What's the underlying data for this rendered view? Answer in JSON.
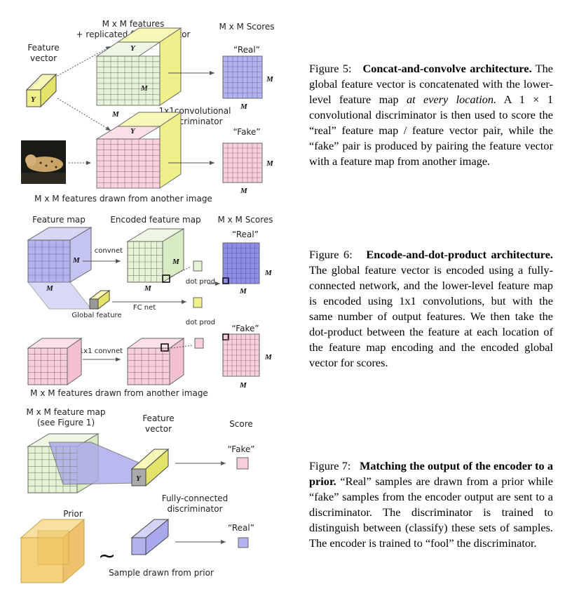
{
  "fig5": {
    "feature_vector": "Feature\nvector",
    "mm_replicated": "M x M features\n+ replicated feature vector",
    "scores": "M x M Scores",
    "real": "“Real”",
    "fake": "“Fake”",
    "conv": "1x1convolutional\ndiscriminator",
    "another": "M x M features drawn from another image",
    "y": "Y",
    "m": "M",
    "caption": {
      "number": "Figure 5:",
      "title": "Concat-and-convolve architecture.",
      "text1": "The global feature vector is concatenated with the lower-level feature map",
      "italic": "at every location.",
      "text2": "A 1 × 1 convolutional discriminator is then used to score the “real” feature map / feature vector pair, while the “fake” pair is produced by pairing the feature vector with a feature map from another image."
    }
  },
  "fig6": {
    "feature_map": "Feature map",
    "encoded": "Encoded feature map",
    "scores": "M x M Scores",
    "real": "“Real”",
    "fake": "“Fake”",
    "convnet": "1x1 convnet",
    "dot_prod": "dot prod",
    "fc_net": "FC net",
    "global_feature": "Global feature",
    "another": "M x M features drawn from another image",
    "caption": {
      "number": "Figure 6:",
      "title": "Encode-and-dot-product architecture.",
      "text": "The global feature vector is encoded using a fully-connected network, and the lower-level feature map is encoded using 1x1 convolutions, but with the same number of output features. We then take the dot-product between the feature at each location of the feature map encoding and the encoded global vector for scores."
    }
  },
  "fig7": {
    "mm_map": "M x M feature map\n(see Figure 1)",
    "feature_vector": "Feature\nvector",
    "score": "Score",
    "fake": "“Fake”",
    "real": "“Real”",
    "fc_disc": "Fully-connected\ndiscriminator",
    "prior": "Prior",
    "tilde": "~",
    "sample": "Sample drawn from prior",
    "caption": {
      "number": "Figure 7:",
      "title": "Matching the output of the encoder to a prior.",
      "text": "“Real” samples are drawn from a prior while “fake” samples from the encoder output are sent to a discriminator. The discriminator is trained to distinguish between (classify) these sets of samples. The encoder is trained to “fool” the discriminator."
    }
  },
  "colors": {
    "green": "#e4f2d6",
    "yellow": "#f0f08a",
    "blue": "#b3b3f0",
    "pink": "#f7cfdc",
    "orange": "#f5d27a"
  }
}
